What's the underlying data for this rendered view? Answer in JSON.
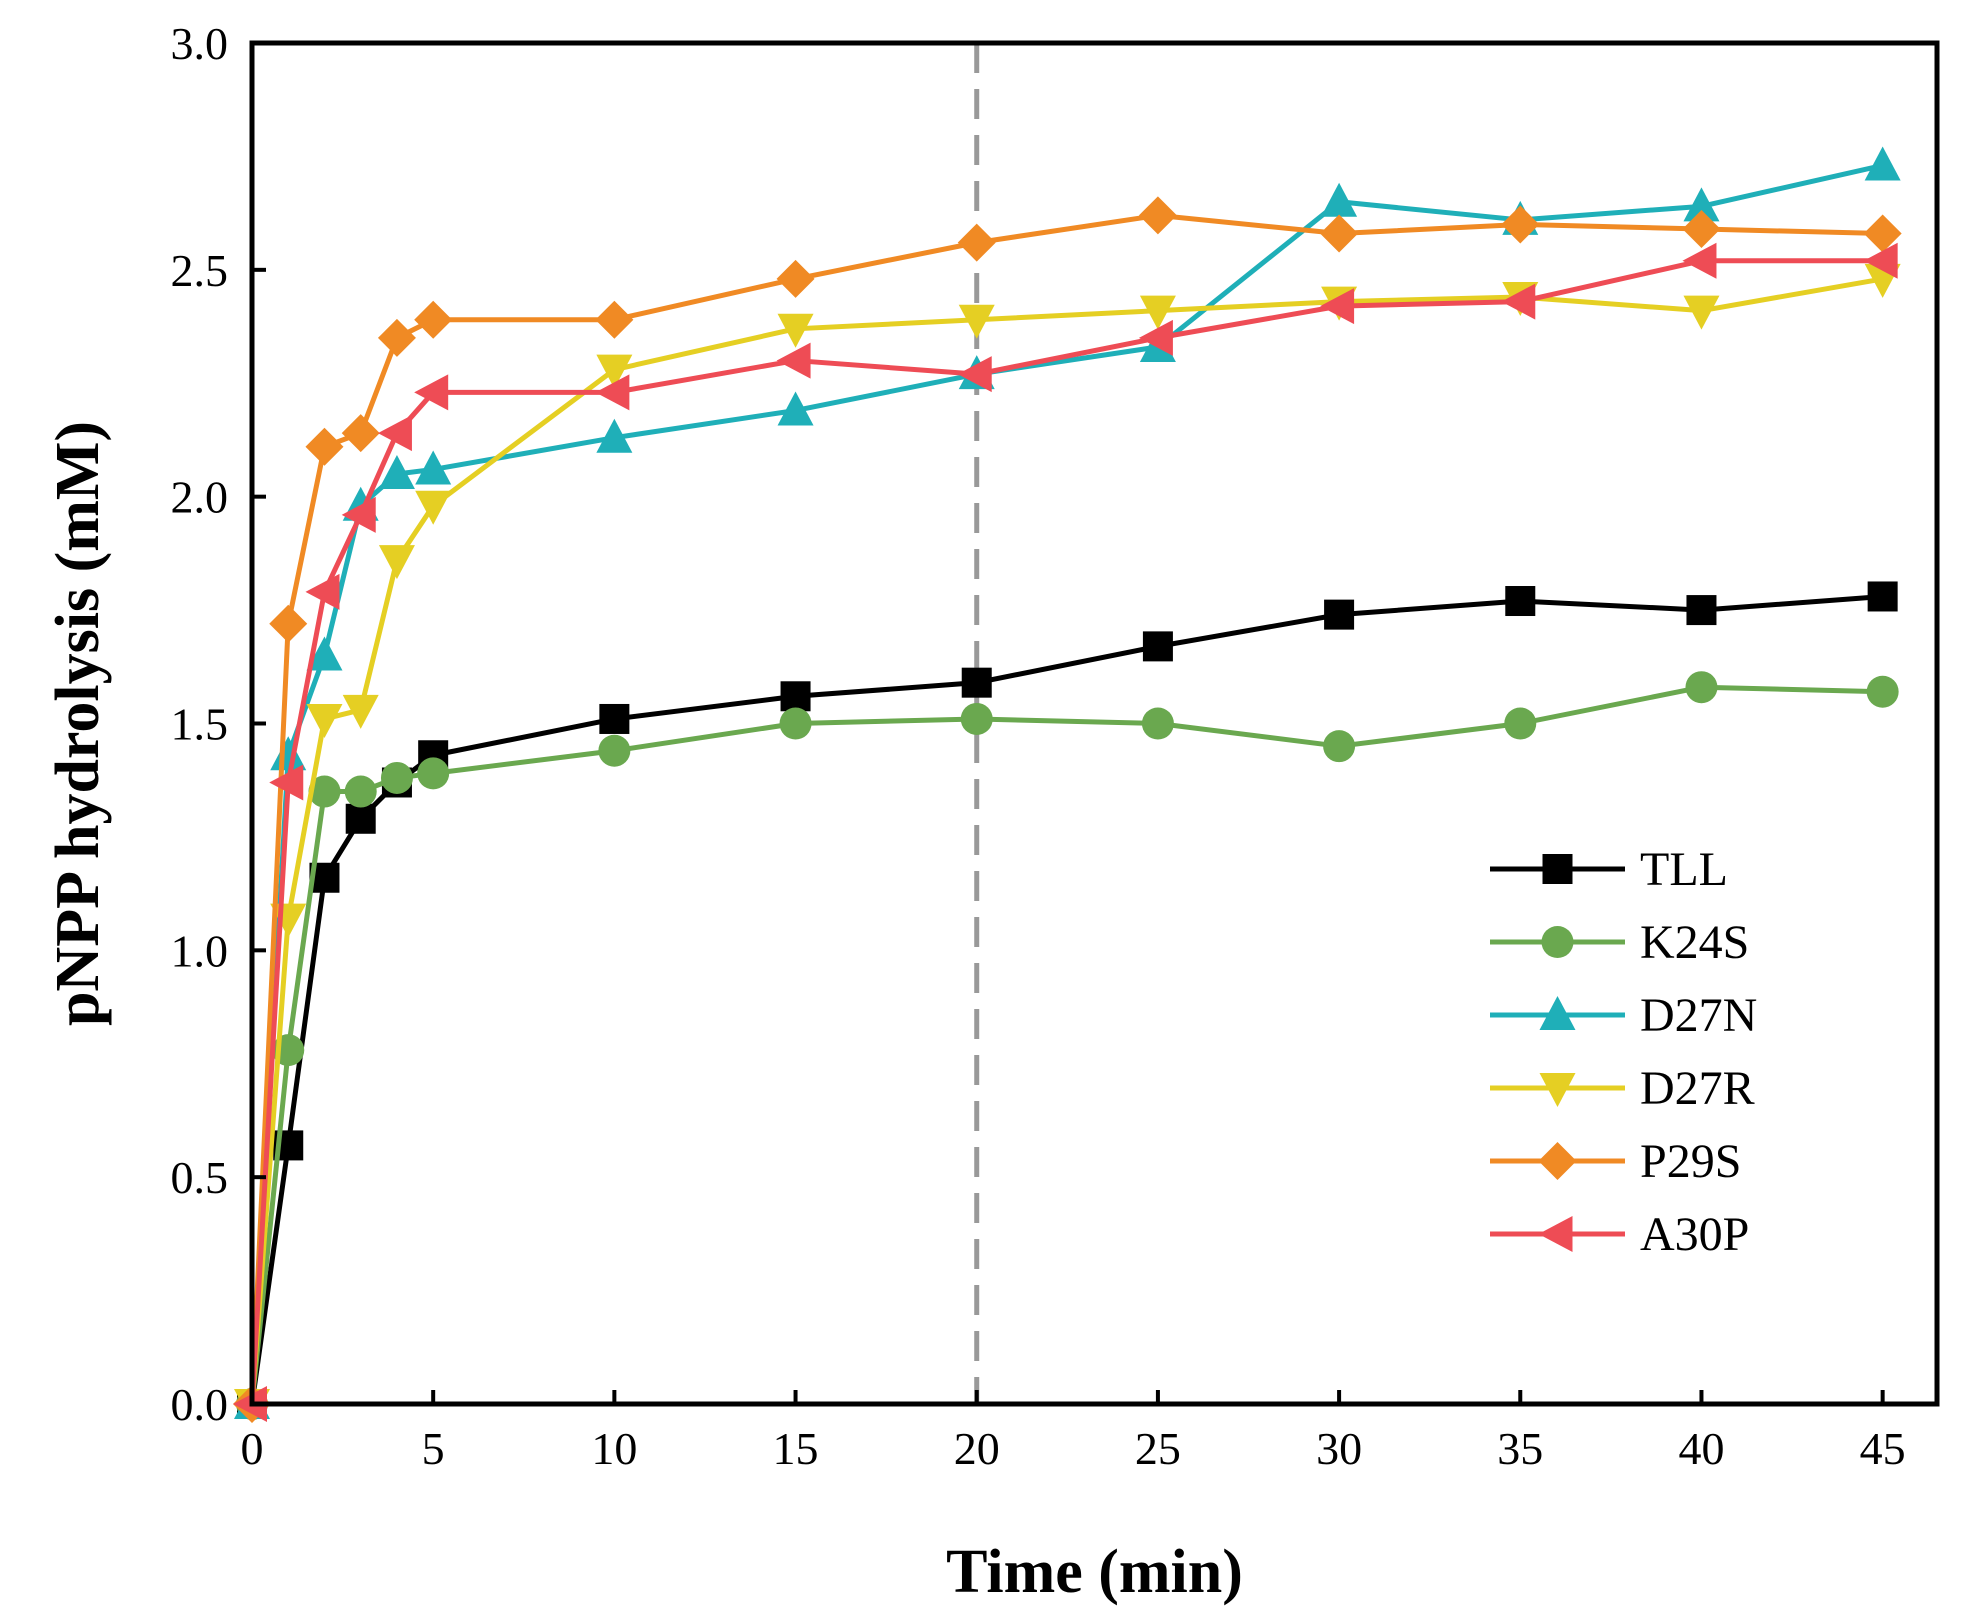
{
  "chart_data": {
    "type": "line",
    "xlabel": "Time (min)",
    "ylabel": "pNPP hydrolysis (mM)",
    "xlim": [
      0,
      46.5
    ],
    "ylim": [
      0,
      3.0
    ],
    "xticks": [
      0,
      5,
      10,
      15,
      20,
      25,
      30,
      35,
      40,
      45
    ],
    "yticks": [
      0.0,
      0.5,
      1.0,
      1.5,
      2.0,
      2.5,
      3.0
    ],
    "xtick_labels": [
      "0",
      "5",
      "10",
      "15",
      "20",
      "25",
      "30",
      "35",
      "40",
      "45"
    ],
    "ytick_labels": [
      "0.0",
      "0.5",
      "1.0",
      "1.5",
      "2.0",
      "2.5",
      "3.0"
    ],
    "reference_line": {
      "x": 20,
      "style": "dashed",
      "color": "#999999"
    },
    "legend_position": "lower-right",
    "x": [
      0,
      1,
      2,
      3,
      4,
      5,
      10,
      15,
      20,
      25,
      30,
      35,
      40,
      45
    ],
    "series": [
      {
        "name": "TLL",
        "color": "#000000",
        "marker": "square",
        "values": [
          0,
          0.57,
          1.16,
          1.29,
          1.37,
          1.43,
          1.51,
          1.56,
          1.59,
          1.67,
          1.74,
          1.77,
          1.75,
          1.78
        ]
      },
      {
        "name": "K24S",
        "color": "#6AA84F",
        "marker": "circle",
        "values": [
          0,
          0.78,
          1.35,
          1.35,
          1.38,
          1.39,
          1.44,
          1.5,
          1.51,
          1.5,
          1.45,
          1.5,
          1.58,
          1.57
        ]
      },
      {
        "name": "D27N",
        "color": "#1FAFB8",
        "marker": "triangle-up",
        "values": [
          0,
          1.43,
          1.65,
          1.98,
          2.05,
          2.06,
          2.13,
          2.19,
          2.27,
          2.33,
          2.65,
          2.61,
          2.64,
          2.73
        ]
      },
      {
        "name": "D27R",
        "color": "#E5CF23",
        "marker": "triangle-down",
        "values": [
          0,
          1.07,
          1.51,
          1.53,
          1.86,
          1.98,
          2.28,
          2.37,
          2.39,
          2.41,
          2.43,
          2.44,
          2.41,
          2.48
        ]
      },
      {
        "name": "P29S",
        "color": "#F08A24",
        "marker": "diamond",
        "values": [
          0,
          1.72,
          2.11,
          2.14,
          2.35,
          2.39,
          2.39,
          2.48,
          2.56,
          2.62,
          2.58,
          2.6,
          2.59,
          2.58
        ]
      },
      {
        "name": "A30P",
        "color": "#EE4C55",
        "marker": "triangle-left",
        "values": [
          0,
          1.37,
          1.79,
          1.96,
          2.14,
          2.23,
          2.23,
          2.3,
          2.27,
          2.35,
          2.42,
          2.43,
          2.52,
          2.52
        ]
      }
    ]
  }
}
